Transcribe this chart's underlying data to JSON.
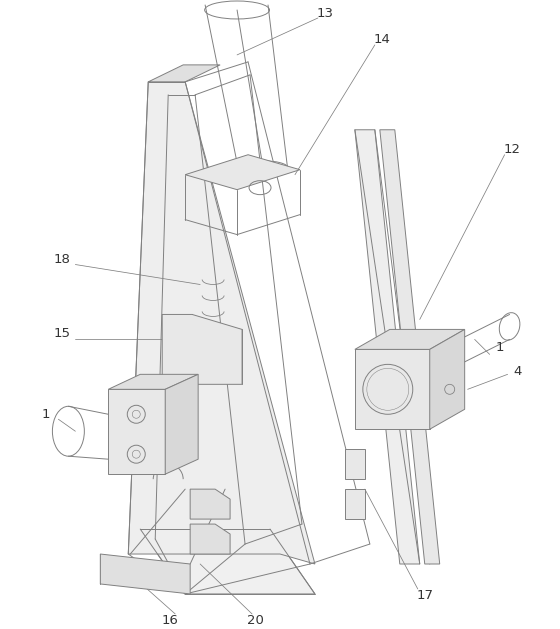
{
  "fig_width": 5.6,
  "fig_height": 6.29,
  "dpi": 100,
  "bg_color": "#ffffff",
  "lc": "#808080",
  "lw": 0.7,
  "label_fontsize": 9.5
}
